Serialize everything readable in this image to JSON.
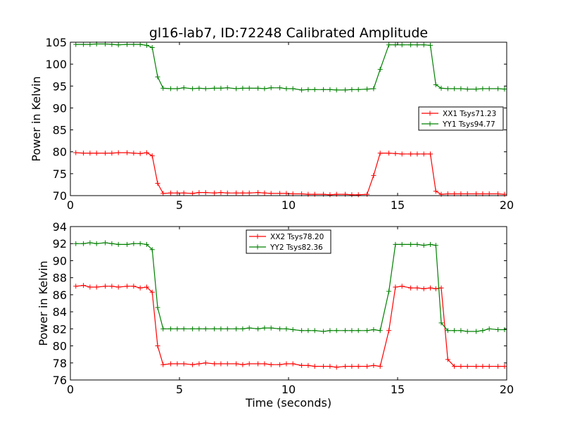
{
  "title": "gl16-lab7, ID:72248 Calibrated Amplitude",
  "xlabel": "Time (seconds)",
  "colors": {
    "red": "#ff0000",
    "green": "#008000"
  },
  "chart_data": [
    {
      "type": "line",
      "title": "gl16-lab7, ID:72248 Calibrated Amplitude",
      "xlabel": "",
      "ylabel": "Power in Kelvin",
      "xlim": [
        0,
        20
      ],
      "ylim": [
        70,
        105
      ],
      "xticks": [
        0,
        5,
        10,
        15,
        20
      ],
      "yticks": [
        70,
        75,
        80,
        85,
        90,
        95,
        100,
        105
      ],
      "grid": false,
      "legend": "right",
      "x": [
        0.25,
        0.6,
        0.9,
        1.2,
        1.6,
        1.9,
        2.2,
        2.6,
        2.9,
        3.2,
        3.5,
        3.75,
        4.0,
        4.25,
        4.6,
        4.9,
        5.2,
        5.6,
        5.9,
        6.2,
        6.6,
        6.9,
        7.2,
        7.6,
        7.9,
        8.2,
        8.6,
        8.9,
        9.2,
        9.6,
        9.9,
        10.2,
        10.6,
        10.9,
        11.2,
        11.6,
        11.9,
        12.2,
        12.6,
        12.9,
        13.2,
        13.6,
        13.9,
        14.2,
        14.6,
        14.9,
        15.2,
        15.6,
        15.9,
        16.2,
        16.5,
        16.75,
        17.0,
        17.3,
        17.6,
        17.9,
        18.2,
        18.6,
        18.9,
        19.2,
        19.6,
        19.9
      ],
      "series": [
        {
          "name": "XX1 Tsys71.23",
          "color": "#ff0000",
          "values": [
            79.8,
            79.7,
            79.7,
            79.7,
            79.7,
            79.7,
            79.8,
            79.8,
            79.7,
            79.6,
            79.8,
            79.1,
            72.8,
            70.5,
            70.6,
            70.6,
            70.6,
            70.5,
            70.7,
            70.7,
            70.6,
            70.7,
            70.6,
            70.6,
            70.6,
            70.6,
            70.7,
            70.6,
            70.5,
            70.5,
            70.5,
            70.4,
            70.4,
            70.3,
            70.3,
            70.3,
            70.2,
            70.3,
            70.3,
            70.2,
            70.2,
            70.3,
            74.6,
            79.7,
            79.7,
            79.6,
            79.5,
            79.5,
            79.5,
            79.5,
            79.5,
            71.0,
            70.3,
            70.4,
            70.4,
            70.4,
            70.4,
            70.4,
            70.4,
            70.4,
            70.4,
            70.3
          ]
        },
        {
          "name": "YY1 Tsys94.77",
          "color": "#008000",
          "values": [
            104.5,
            104.5,
            104.5,
            104.6,
            104.6,
            104.5,
            104.4,
            104.5,
            104.5,
            104.5,
            104.3,
            103.8,
            97.1,
            94.5,
            94.4,
            94.4,
            94.6,
            94.4,
            94.5,
            94.4,
            94.5,
            94.5,
            94.6,
            94.4,
            94.5,
            94.5,
            94.5,
            94.4,
            94.6,
            94.6,
            94.4,
            94.4,
            94.1,
            94.2,
            94.2,
            94.2,
            94.2,
            94.1,
            94.1,
            94.2,
            94.2,
            94.3,
            94.4,
            98.8,
            104.4,
            104.4,
            104.4,
            104.4,
            104.4,
            104.4,
            104.3,
            95.3,
            94.5,
            94.4,
            94.4,
            94.4,
            94.3,
            94.3,
            94.4,
            94.4,
            94.4,
            94.3
          ]
        }
      ]
    },
    {
      "type": "line",
      "title": "",
      "xlabel": "Time (seconds)",
      "ylabel": "Power in Kelvin",
      "xlim": [
        0,
        20
      ],
      "ylim": [
        76,
        94
      ],
      "xticks": [
        0,
        5,
        10,
        15,
        20
      ],
      "yticks": [
        76,
        78,
        80,
        82,
        84,
        86,
        88,
        90,
        92,
        94
      ],
      "grid": false,
      "legend": "top-center",
      "x": [
        0.25,
        0.6,
        0.9,
        1.2,
        1.6,
        1.9,
        2.2,
        2.6,
        2.9,
        3.2,
        3.5,
        3.75,
        4.0,
        4.25,
        4.6,
        4.9,
        5.2,
        5.6,
        5.9,
        6.2,
        6.6,
        6.9,
        7.2,
        7.6,
        7.9,
        8.2,
        8.6,
        8.9,
        9.2,
        9.6,
        9.9,
        10.2,
        10.6,
        10.9,
        11.2,
        11.6,
        11.9,
        12.2,
        12.6,
        12.9,
        13.2,
        13.6,
        13.9,
        14.2,
        14.6,
        14.9,
        15.2,
        15.6,
        15.9,
        16.2,
        16.5,
        16.75,
        17.0,
        17.3,
        17.6,
        17.9,
        18.2,
        18.6,
        18.9,
        19.2,
        19.6,
        19.9
      ],
      "series": [
        {
          "name": "XX2 Tsys78.20",
          "color": "#ff0000",
          "values": [
            87.0,
            87.1,
            86.9,
            86.9,
            87.0,
            87.0,
            86.9,
            87.0,
            87.0,
            86.8,
            86.9,
            86.3,
            80.0,
            77.8,
            77.9,
            77.9,
            77.9,
            77.8,
            77.9,
            78.0,
            77.9,
            77.9,
            77.9,
            77.9,
            77.8,
            77.9,
            77.9,
            77.9,
            77.8,
            77.8,
            77.9,
            77.9,
            77.7,
            77.7,
            77.6,
            77.6,
            77.6,
            77.5,
            77.6,
            77.6,
            77.6,
            77.6,
            77.7,
            77.6,
            81.8,
            86.9,
            87.0,
            86.8,
            86.8,
            86.7,
            86.8,
            86.7,
            86.8,
            78.4,
            77.6,
            77.6,
            77.6,
            77.6,
            77.6,
            77.6,
            77.6,
            77.6
          ]
        },
        {
          "name": "YY2 Tsys82.36",
          "color": "#008000",
          "values": [
            92.0,
            92.0,
            92.1,
            92.0,
            92.1,
            92.0,
            91.9,
            91.9,
            92.0,
            92.0,
            91.9,
            91.3,
            84.5,
            82.0,
            82.0,
            82.0,
            82.0,
            82.0,
            82.0,
            82.0,
            82.0,
            82.0,
            82.0,
            82.0,
            82.0,
            82.1,
            82.0,
            82.1,
            82.1,
            82.0,
            82.0,
            81.9,
            81.8,
            81.8,
            81.8,
            81.7,
            81.8,
            81.8,
            81.8,
            81.8,
            81.8,
            81.8,
            81.9,
            81.8,
            86.4,
            91.9,
            91.9,
            91.9,
            91.9,
            91.8,
            91.9,
            91.8,
            82.7,
            81.8,
            81.8,
            81.8,
            81.7,
            81.7,
            81.8,
            82.0,
            81.9,
            81.9
          ]
        }
      ]
    }
  ]
}
